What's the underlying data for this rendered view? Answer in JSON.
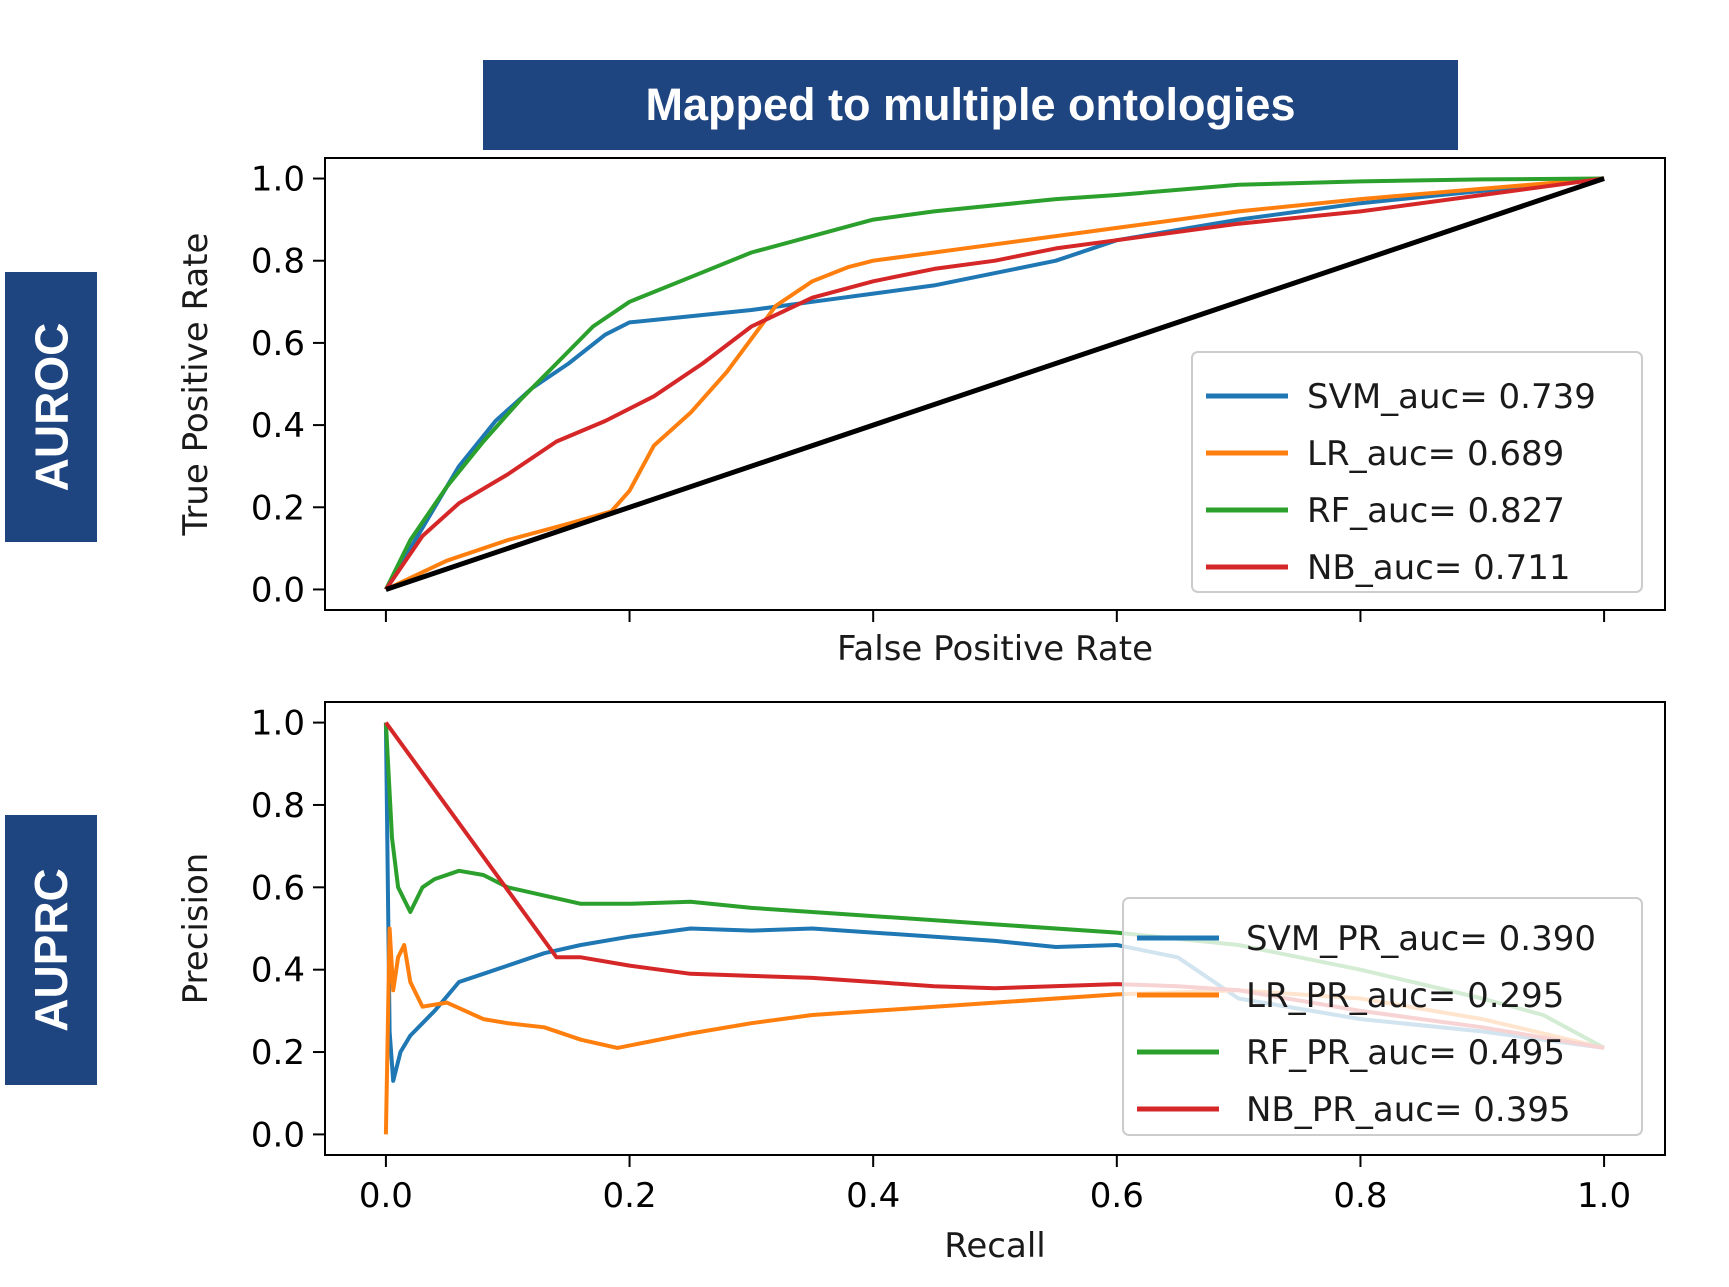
{
  "banner": {
    "title": "Mapped to multiple ontologies",
    "color": "#1f4580"
  },
  "side_labels": {
    "top": "AUROC",
    "bottom": "AUPRC"
  },
  "colors": {
    "SVM": "#1f77b4",
    "LR": "#ff7f0e",
    "RF": "#2ca02c",
    "NB": "#d62728",
    "diagonal": "#000000"
  },
  "chart_data": [
    {
      "type": "line",
      "title": "Mapped to multiple ontologies",
      "xlabel": "False Positive Rate",
      "ylabel": "True Positive Rate",
      "xlim": [
        -0.05,
        1.05
      ],
      "ylim": [
        -0.05,
        1.05
      ],
      "yticks": [
        0.0,
        0.2,
        0.4,
        0.6,
        0.8,
        1.0
      ],
      "ytick_labels": [
        "0.0",
        "0.2",
        "0.4",
        "0.6",
        "0.8",
        "1.0"
      ],
      "xticks": [
        0.0,
        0.2,
        0.4,
        0.6,
        0.8,
        1.0
      ],
      "xtick_labels_visible": false,
      "legend_position": "lower-right",
      "series": [
        {
          "name": "SVM_auc= 0.739",
          "color": "#1f77b4",
          "x": [
            0,
            0.03,
            0.06,
            0.09,
            0.12,
            0.15,
            0.18,
            0.2,
            0.25,
            0.3,
            0.35,
            0.4,
            0.45,
            0.5,
            0.55,
            0.6,
            0.7,
            0.8,
            0.9,
            1.0
          ],
          "y": [
            0,
            0.15,
            0.3,
            0.41,
            0.49,
            0.55,
            0.62,
            0.65,
            0.665,
            0.68,
            0.7,
            0.72,
            0.74,
            0.77,
            0.8,
            0.85,
            0.9,
            0.94,
            0.97,
            1.0
          ]
        },
        {
          "name": "LR_auc= 0.689",
          "color": "#ff7f0e",
          "x": [
            0,
            0.05,
            0.1,
            0.15,
            0.185,
            0.2,
            0.22,
            0.25,
            0.28,
            0.3,
            0.32,
            0.35,
            0.38,
            0.4,
            0.45,
            0.5,
            0.6,
            0.7,
            0.8,
            0.9,
            1.0
          ],
          "y": [
            0,
            0.07,
            0.12,
            0.16,
            0.19,
            0.24,
            0.35,
            0.43,
            0.53,
            0.61,
            0.69,
            0.75,
            0.785,
            0.8,
            0.82,
            0.84,
            0.88,
            0.92,
            0.95,
            0.975,
            1.0
          ]
        },
        {
          "name": "RF_auc= 0.827",
          "color": "#2ca02c",
          "x": [
            0,
            0.02,
            0.05,
            0.08,
            0.11,
            0.14,
            0.17,
            0.2,
            0.25,
            0.3,
            0.35,
            0.4,
            0.45,
            0.5,
            0.55,
            0.6,
            0.7,
            0.8,
            0.9,
            1.0
          ],
          "y": [
            0,
            0.12,
            0.25,
            0.36,
            0.46,
            0.55,
            0.64,
            0.7,
            0.76,
            0.82,
            0.86,
            0.9,
            0.92,
            0.935,
            0.95,
            0.96,
            0.985,
            0.993,
            0.998,
            1.0
          ]
        },
        {
          "name": "NB_auc= 0.711",
          "color": "#d62728",
          "x": [
            0,
            0.03,
            0.06,
            0.1,
            0.14,
            0.18,
            0.22,
            0.26,
            0.3,
            0.35,
            0.4,
            0.45,
            0.5,
            0.55,
            0.6,
            0.7,
            0.8,
            0.9,
            1.0
          ],
          "y": [
            0,
            0.13,
            0.21,
            0.28,
            0.36,
            0.41,
            0.47,
            0.55,
            0.64,
            0.71,
            0.75,
            0.78,
            0.8,
            0.83,
            0.85,
            0.89,
            0.92,
            0.96,
            1.0
          ]
        },
        {
          "name": "",
          "color": "#000000",
          "x": [
            0,
            1
          ],
          "y": [
            0,
            1
          ]
        }
      ]
    },
    {
      "type": "line",
      "xlabel": "Recall",
      "ylabel": "Precision",
      "xlim": [
        -0.05,
        1.05
      ],
      "ylim": [
        -0.05,
        1.05
      ],
      "yticks": [
        0.0,
        0.2,
        0.4,
        0.6,
        0.8,
        1.0
      ],
      "ytick_labels": [
        "0.0",
        "0.2",
        "0.4",
        "0.6",
        "0.8",
        "1.0"
      ],
      "xticks": [
        0.0,
        0.2,
        0.4,
        0.6,
        0.8,
        1.0
      ],
      "xtick_labels": [
        "0.0",
        "0.2",
        "0.4",
        "0.6",
        "0.8",
        "1.0"
      ],
      "legend_position": "lower-right",
      "series": [
        {
          "name": "SVM_PR_auc= 0.390",
          "color": "#1f77b4",
          "x": [
            0,
            0.003,
            0.006,
            0.012,
            0.02,
            0.04,
            0.06,
            0.08,
            0.1,
            0.13,
            0.16,
            0.2,
            0.25,
            0.3,
            0.35,
            0.4,
            0.5,
            0.55,
            0.6,
            0.65,
            0.7,
            0.8,
            0.9,
            1.0
          ],
          "y": [
            1.0,
            0.25,
            0.13,
            0.2,
            0.24,
            0.3,
            0.37,
            0.39,
            0.41,
            0.44,
            0.46,
            0.48,
            0.5,
            0.495,
            0.5,
            0.49,
            0.47,
            0.455,
            0.46,
            0.43,
            0.33,
            0.28,
            0.25,
            0.21
          ]
        },
        {
          "name": "LR_PR_auc= 0.295",
          "color": "#ff7f0e",
          "x": [
            0,
            0.003,
            0.006,
            0.01,
            0.015,
            0.02,
            0.03,
            0.05,
            0.08,
            0.1,
            0.13,
            0.16,
            0.19,
            0.25,
            0.3,
            0.35,
            0.4,
            0.5,
            0.6,
            0.7,
            0.8,
            0.9,
            1.0
          ],
          "y": [
            0.0,
            0.5,
            0.35,
            0.43,
            0.46,
            0.37,
            0.31,
            0.32,
            0.28,
            0.27,
            0.26,
            0.23,
            0.21,
            0.245,
            0.27,
            0.29,
            0.3,
            0.32,
            0.34,
            0.35,
            0.33,
            0.28,
            0.21
          ]
        },
        {
          "name": "RF_PR_auc= 0.495",
          "color": "#2ca02c",
          "x": [
            0,
            0.005,
            0.01,
            0.02,
            0.03,
            0.04,
            0.06,
            0.08,
            0.1,
            0.13,
            0.16,
            0.2,
            0.25,
            0.3,
            0.4,
            0.5,
            0.6,
            0.7,
            0.8,
            0.9,
            0.95,
            1.0
          ],
          "y": [
            1.0,
            0.72,
            0.6,
            0.54,
            0.6,
            0.62,
            0.64,
            0.63,
            0.6,
            0.58,
            0.56,
            0.56,
            0.565,
            0.55,
            0.53,
            0.51,
            0.49,
            0.46,
            0.4,
            0.33,
            0.29,
            0.21
          ]
        },
        {
          "name": "NB_PR_auc= 0.395",
          "color": "#d62728",
          "x": [
            0,
            0.14,
            0.16,
            0.2,
            0.25,
            0.3,
            0.35,
            0.4,
            0.45,
            0.5,
            0.6,
            0.65,
            0.7,
            0.8,
            0.9,
            1.0
          ],
          "y": [
            1.0,
            0.43,
            0.43,
            0.41,
            0.39,
            0.385,
            0.38,
            0.37,
            0.36,
            0.355,
            0.365,
            0.36,
            0.35,
            0.3,
            0.26,
            0.21
          ]
        }
      ]
    }
  ]
}
